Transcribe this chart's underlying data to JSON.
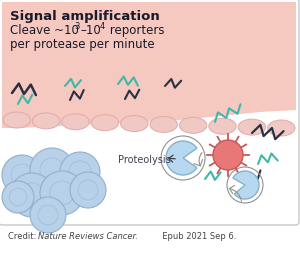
{
  "title_bold": "Signal amplification",
  "title_sub1": "Cleave ~10",
  "title_sup1": "3",
  "title_mid": "–",
  "title_sub2": "10",
  "title_sup2": "4",
  "title_end": " reporters",
  "title_line2": "per protease per minute",
  "credit_normal": "Credit: ",
  "credit_italic": "Nature Reviews Cancer.",
  "credit_rest": "  Epub 2021 Sep 6.",
  "bg_color": "#ffffff",
  "pink_top": "#f5c8c0",
  "pink_bottom": "#fce0dc",
  "membrane_fill": "#f0c8c4",
  "membrane_edge": "#e0aaaa",
  "teal": "#40b8a8",
  "dark": "#2a3040",
  "cell_fill": "#b8d0e8",
  "cell_edge": "#90b0d0",
  "cell_inner": "#a0c0e0",
  "protease_fill": "#b8d8f0",
  "protease_edge": "#88b0cc",
  "protease_ring": "#909090",
  "tumor_fill": "#e87878",
  "tumor_edge": "#c85858",
  "tumor_spike": "#c85858",
  "text_dark": "#1a1a2a",
  "text_mid": "#404050",
  "border_color": "#c8c8c8"
}
